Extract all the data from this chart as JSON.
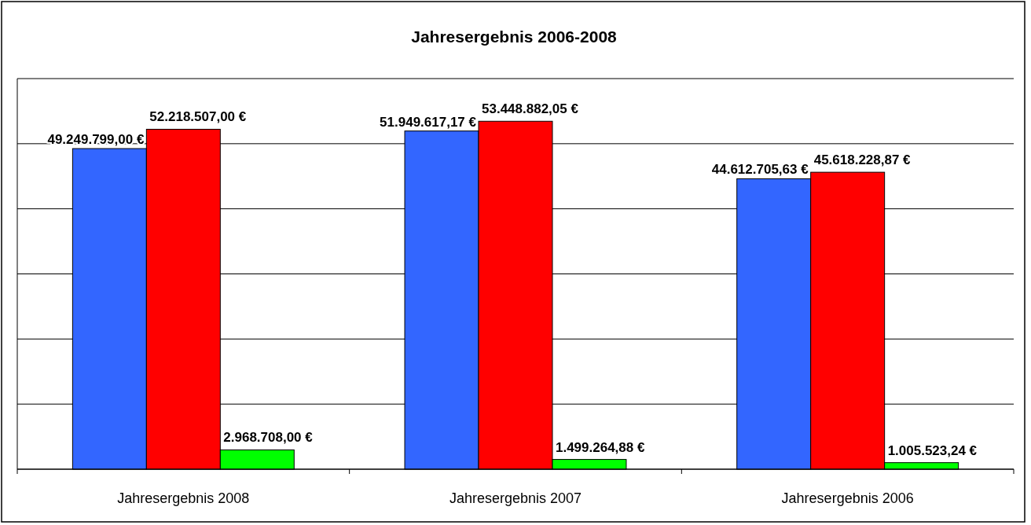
{
  "chart_data": {
    "type": "bar",
    "title": "Jahresergebnis 2006-2008",
    "categories": [
      "Jahresergebnis 2008",
      "Jahresergebnis 2007",
      "Jahresergebnis 2006"
    ],
    "series": [
      {
        "color": "#3366ff",
        "values": [
          49249799.0,
          51949617.17,
          44612705.63
        ],
        "value_labels": [
          "49.249.799,00 €",
          "51.949.617,17 €",
          "44.612.705,63 €"
        ]
      },
      {
        "color": "#ff0000",
        "values": [
          52218507.0,
          53448882.05,
          45618228.87
        ],
        "value_labels": [
          "52.218.507,00 €",
          "53.448.882,05 €",
          "45.618.228,87 €"
        ]
      },
      {
        "color": "#00ff00",
        "values": [
          2968708.0,
          1499264.88,
          1005523.24
        ],
        "value_labels": [
          "2.968.708,00 €",
          "1.499.264,88 €",
          "1.005.523,24 €"
        ]
      }
    ],
    "ylim": [
      0,
      60000000
    ],
    "yticks": [
      {
        "value": 0,
        "label": null
      },
      {
        "value": 10000000,
        "label": null
      },
      {
        "value": 20000000,
        "label": null
      },
      {
        "value": 30000000,
        "label": null
      },
      {
        "value": 40000000,
        "label": null
      },
      {
        "value": 50000000,
        "label": null
      },
      {
        "value": 60000000,
        "label": null
      }
    ],
    "grid": "y",
    "tick_labels": "x"
  }
}
